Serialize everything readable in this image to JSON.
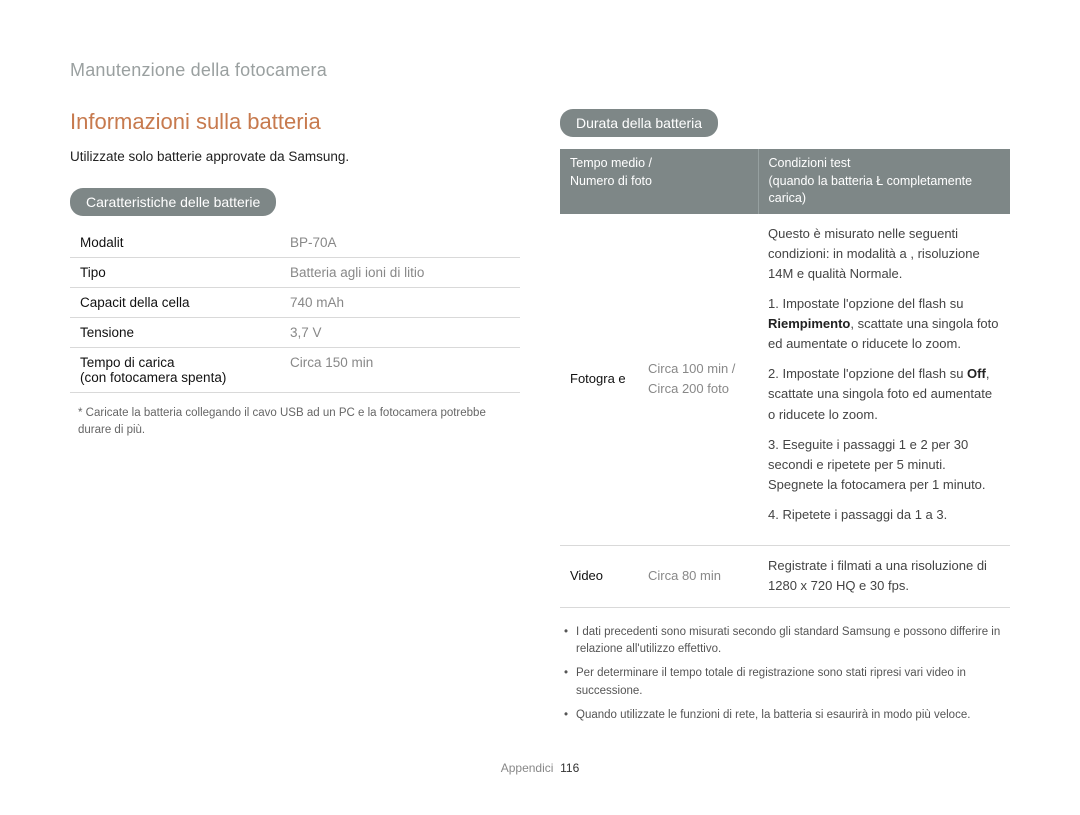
{
  "page": {
    "section_title": "Manutenzione della fotocamera",
    "footer_label": "Appendici",
    "footer_page": "116"
  },
  "left": {
    "heading": "Informazioni sulla batteria",
    "intro": "Utilizzate solo batterie approvate da Samsung.",
    "pill": "Caratteristiche delle batterie",
    "rows": [
      {
        "label": "Modalit",
        "value": "BP-70A"
      },
      {
        "label": "Tipo",
        "value": "Batteria agli ioni di litio"
      },
      {
        "label": "Capacit  della cella",
        "value": "740 mAh"
      },
      {
        "label": "Tensione",
        "value": "3,7 V"
      }
    ],
    "row_charge": {
      "label_line1": "Tempo di carica",
      "label_line2": "(con fotocamera spenta)",
      "value": "Circa 150 min"
    },
    "note": "* Caricate la batteria collegando il cavo USB ad un PC e la fotocamera potrebbe durare di più."
  },
  "right": {
    "pill": "Durata della batteria",
    "th1_line1": "Tempo medio /",
    "th1_line2": "Numero di foto",
    "th2_line1": "Condizioni test",
    "th2_line2": "(quando la batteria Ł completamente carica)",
    "row_photo": {
      "label": "Fotogra e",
      "time_line1": "Circa 100 min /",
      "time_line2": "Circa 200 foto",
      "intro_line1": "Questo è misurato nelle seguenti condizioni: in modalità a",
      "intro_line2": ", risoluzione 14M e qualità Normale.",
      "step1_a": "1. Impostate l'opzione del flash su ",
      "step1_bold": "Riempimento",
      "step1_b": ", scattate una singola foto ed aumentate o riducete lo zoom.",
      "step2_a": "2. Impostate l'opzione del flash su ",
      "step2_bold": "Off",
      "step2_b": ", scattate una singola foto ed aumentate o riducete lo zoom.",
      "step3": "3. Eseguite i passaggi 1 e 2 per 30 secondi e ripetete per 5 minuti. Spegnete la fotocamera per 1 minuto.",
      "step4": "4. Ripetete i passaggi da 1 a 3."
    },
    "row_video": {
      "label": "Video",
      "time": "Circa 80 min",
      "cond": "Registrate i filmati a una risoluzione di 1280 x 720 HQ e 30 fps."
    },
    "bullets": [
      "I dati precedenti sono misurati secondo gli standard Samsung e possono differire in relazione all'utilizzo effettivo.",
      "Per determinare il tempo totale di registrazione sono stati ripresi vari video in successione.",
      "Quando utilizzate le funzioni di rete, la batteria si esaurirà in modo più veloce."
    ]
  }
}
